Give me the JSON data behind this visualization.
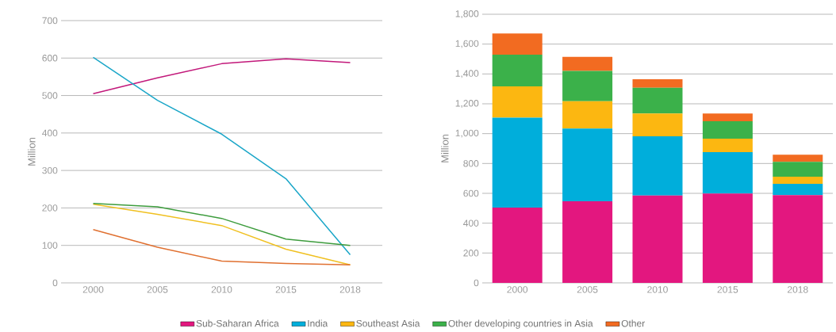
{
  "chart_data": [
    {
      "type": "line",
      "ylabel": "Million",
      "categories": [
        "2000",
        "2005",
        "2010",
        "2015",
        "2018"
      ],
      "ylim": [
        0,
        700
      ],
      "yticks": [
        0,
        100,
        200,
        300,
        400,
        500,
        600,
        700
      ],
      "grid": "y",
      "marker": "none",
      "line_style": "solid",
      "series": [
        {
          "color": "#c2187a",
          "values": [
            505,
            547,
            585,
            598,
            588
          ]
        },
        {
          "color": "#1aa6c8",
          "values": [
            602,
            487,
            397,
            278,
            75
          ]
        },
        {
          "color": "#f0c020",
          "values": [
            210,
            183,
            153,
            90,
            48
          ]
        },
        {
          "color": "#3d9c3d",
          "values": [
            212,
            203,
            172,
            117,
            100
          ]
        },
        {
          "color": "#e07030",
          "values": [
            142,
            95,
            58,
            52,
            48
          ]
        }
      ]
    },
    {
      "type": "bar",
      "stacked": true,
      "ylabel": "Million",
      "categories": [
        "2000",
        "2005",
        "2010",
        "2015",
        "2018"
      ],
      "ylim": [
        0,
        1800
      ],
      "yticks": [
        0,
        200,
        400,
        600,
        800,
        {
          "value": 1000,
          "label": "1,000"
        },
        {
          "value": 1200,
          "label": "1,200"
        },
        {
          "value": 1400,
          "label": "1,400"
        },
        {
          "value": 1600,
          "label": "1,600"
        },
        {
          "value": 1800,
          "label": "1,800"
        }
      ],
      "grid": "y",
      "legend": "bottom",
      "series": [
        {
          "name": "Sub-Saharan Africa",
          "color": "#e3177f",
          "values": [
            505,
            547,
            585,
            598,
            588
          ]
        },
        {
          "name": "India",
          "color": "#00aedb",
          "values": [
            602,
            487,
            397,
            278,
            75
          ]
        },
        {
          "name": "Southeast Asia",
          "color": "#fcb711",
          "values": [
            210,
            183,
            153,
            90,
            48
          ]
        },
        {
          "name": "Other developing countries in Asia",
          "color": "#3bb14a",
          "values": [
            212,
            203,
            172,
            117,
            100
          ]
        },
        {
          "name": "Other",
          "color": "#f26b21",
          "values": [
            142,
            95,
            58,
            52,
            48
          ]
        }
      ]
    }
  ]
}
